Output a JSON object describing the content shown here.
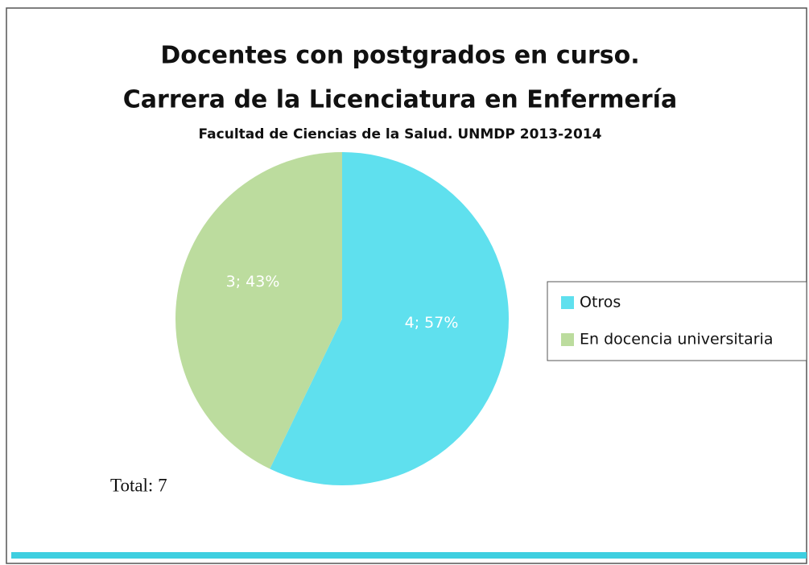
{
  "chart_data": {
    "type": "pie",
    "title": [
      "Docentes con postgrados en curso.",
      "Carrera de la Licenciatura en Enfermería"
    ],
    "subtitle": "Facultad de Ciencias de la Salud. UNMDP 2013-2014",
    "categories": [
      "Otros",
      "En docencia universitaria"
    ],
    "values": [
      4,
      3
    ],
    "value_labels": [
      "4; 57%",
      "3; 43%"
    ],
    "colors": [
      "#5fe0ee",
      "#bcdc9e"
    ],
    "legend": "right",
    "annotations": [
      "Total: 7"
    ]
  }
}
